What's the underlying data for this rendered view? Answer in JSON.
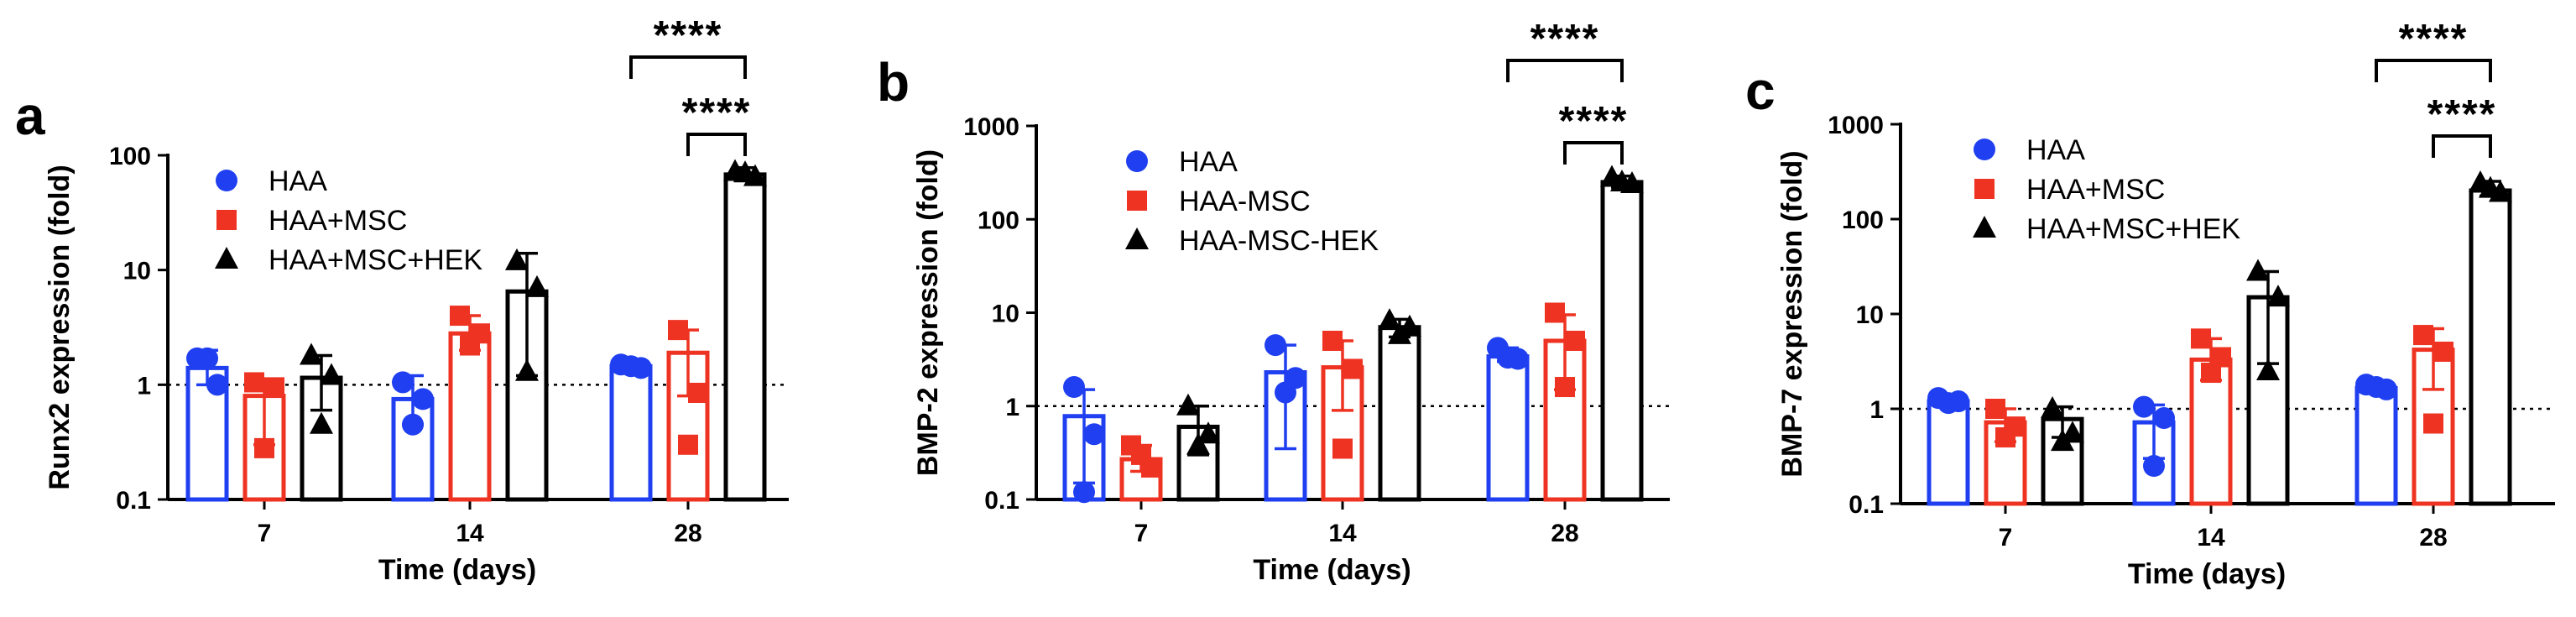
{
  "colors": {
    "HAA": "#1f3ff0",
    "MSC": "#ee3322",
    "HEK": "#000000"
  },
  "chart_data": [
    {
      "type": "bar",
      "panel": "a",
      "scale": "log",
      "ylabel": "Runx2 expression (fold)",
      "xlabel": "Time (days)",
      "ylim": [
        0.1,
        100
      ],
      "yticks": [
        "0.1",
        "1",
        "10",
        "100"
      ],
      "categories": [
        "7",
        "14",
        "28"
      ],
      "legend": [
        "HAA",
        "HAA+MSC",
        "HAA+MSC+HEK"
      ],
      "reference_line": 1,
      "series": [
        {
          "name": "HAA",
          "color": "#1f3ff0",
          "marker": "circle",
          "values": [
            1.4,
            0.75,
            1.45
          ],
          "err": [
            [
              1.0,
              2.0
            ],
            [
              0.45,
              1.2
            ],
            [
              1.3,
              1.6
            ]
          ],
          "points": [
            [
              1.7,
              1.0,
              1.7
            ],
            [
              1.05,
              0.75,
              0.45
            ],
            [
              1.5,
              1.4,
              1.45
            ]
          ]
        },
        {
          "name": "HAA+MSC",
          "color": "#ee3322",
          "marker": "square",
          "values": [
            0.8,
            2.8,
            1.9
          ],
          "err": [
            [
              0.3,
              1.1
            ],
            [
              2.0,
              4.0
            ],
            [
              0.8,
              3.0
            ]
          ],
          "points": [
            [
              1.05,
              0.95,
              0.28
            ],
            [
              4.0,
              2.8,
              2.2
            ],
            [
              3.0,
              0.85,
              0.3
            ]
          ]
        },
        {
          "name": "HAA+MSC+HEK",
          "color": "#000000",
          "marker": "triangle",
          "values": [
            1.15,
            6.5,
            68
          ],
          "err": [
            [
              0.6,
              1.8
            ],
            [
              1.2,
              14
            ],
            [
              60,
              78
            ]
          ],
          "points": [
            [
              1.8,
              1.2,
              0.45
            ],
            [
              12,
              7,
              1.3
            ],
            [
              72,
              65,
              70
            ]
          ]
        }
      ],
      "significance": [
        {
          "label": "****",
          "from": "HAA",
          "to": "HAA+MSC+HEK",
          "at": "28"
        },
        {
          "label": "****",
          "from": "HAA+MSC",
          "to": "HAA+MSC+HEK",
          "at": "28"
        }
      ]
    },
    {
      "type": "bar",
      "panel": "b",
      "scale": "log",
      "ylabel": "BMP-2 expression (fold)",
      "xlabel": "Time (days)",
      "ylim": [
        0.1,
        1000
      ],
      "yticks": [
        "0.1",
        "1",
        "10",
        "100",
        "1000"
      ],
      "categories": [
        "7",
        "14",
        "28"
      ],
      "legend": [
        "HAA",
        "HAA-MSC",
        "HAA-MSC-HEK"
      ],
      "reference_line": 1,
      "series": [
        {
          "name": "HAA",
          "color": "#1f3ff0",
          "marker": "circle",
          "values": [
            0.78,
            2.3,
            3.4
          ],
          "err": [
            [
              0.15,
              1.5
            ],
            [
              0.35,
              4.5
            ],
            [
              3.0,
              4.2
            ]
          ],
          "points": [
            [
              1.6,
              0.5,
              0.12
            ],
            [
              4.5,
              2.0,
              1.4
            ],
            [
              4.2,
              3.2,
              3.3
            ]
          ]
        },
        {
          "name": "HAA-MSC",
          "color": "#ee3322",
          "marker": "square",
          "values": [
            0.27,
            2.6,
            5.0
          ],
          "err": [
            [
              0.2,
              0.38
            ],
            [
              0.9,
              5.0
            ],
            [
              1.5,
              9.5
            ]
          ],
          "points": [
            [
              0.38,
              0.22,
              0.3
            ],
            [
              5.0,
              2.5,
              0.35
            ],
            [
              10,
              5.0,
              1.6
            ]
          ]
        },
        {
          "name": "HAA-MSC-HEK",
          "color": "#000000",
          "marker": "triangle",
          "values": [
            0.6,
            7.0,
            250
          ],
          "err": [
            [
              0.3,
              1.0
            ],
            [
              5.5,
              8.5
            ],
            [
              220,
              290
            ]
          ],
          "points": [
            [
              1.0,
              0.5,
              0.38
            ],
            [
              8.2,
              7.0,
              5.8
            ],
            [
              280,
              240,
              250
            ]
          ]
        }
      ],
      "significance": [
        {
          "label": "****",
          "from": "HAA",
          "to": "HAA-MSC-HEK",
          "at": "28"
        },
        {
          "label": "****",
          "from": "HAA-MSC",
          "to": "HAA-MSC-HEK",
          "at": "28"
        }
      ]
    },
    {
      "type": "bar",
      "panel": "c",
      "scale": "log",
      "ylabel": "BMP-7 expression (fold)",
      "xlabel": "Time (days)",
      "ylim": [
        0.1,
        1000
      ],
      "yticks": [
        "0.1",
        "1",
        "10",
        "100",
        "1000"
      ],
      "categories": [
        "7",
        "14",
        "28"
      ],
      "legend": [
        "HAA",
        "HAA+MSC",
        "HAA+MSC+HEK"
      ],
      "reference_line": 1,
      "series": [
        {
          "name": "HAA",
          "color": "#1f3ff0",
          "marker": "circle",
          "values": [
            1.2,
            0.72,
            1.65
          ],
          "err": [
            [
              1.05,
              1.35
            ],
            [
              0.3,
              1.1
            ],
            [
              1.5,
              1.8
            ]
          ],
          "points": [
            [
              1.3,
              1.2,
              1.15
            ],
            [
              1.05,
              0.8,
              0.25
            ],
            [
              1.8,
              1.6,
              1.7
            ]
          ]
        },
        {
          "name": "HAA+MSC",
          "color": "#ee3322",
          "marker": "square",
          "values": [
            0.72,
            3.3,
            4.2
          ],
          "err": [
            [
              0.45,
              1.0
            ],
            [
              2.0,
              5.5
            ],
            [
              1.6,
              7.0
            ]
          ],
          "points": [
            [
              1.0,
              0.65,
              0.5
            ],
            [
              5.5,
              3.5,
              2.4
            ],
            [
              6.0,
              4.0,
              0.7
            ]
          ]
        },
        {
          "name": "HAA+MSC+HEK",
          "color": "#000000",
          "marker": "triangle",
          "values": [
            0.78,
            15,
            200
          ],
          "err": [
            [
              0.5,
              1.05
            ],
            [
              3.0,
              28
            ],
            [
              175,
              250
            ]
          ],
          "points": [
            [
              1.0,
              0.55,
              0.45
            ],
            [
              28,
              15,
              2.5
            ],
            [
              240,
              190,
              210
            ]
          ]
        }
      ],
      "significance": [
        {
          "label": "****",
          "from": "HAA",
          "to": "HAA+MSC+HEK",
          "at": "28"
        },
        {
          "label": "****",
          "from": "HAA+MSC",
          "to": "HAA+MSC+HEK",
          "at": "28"
        }
      ]
    }
  ]
}
